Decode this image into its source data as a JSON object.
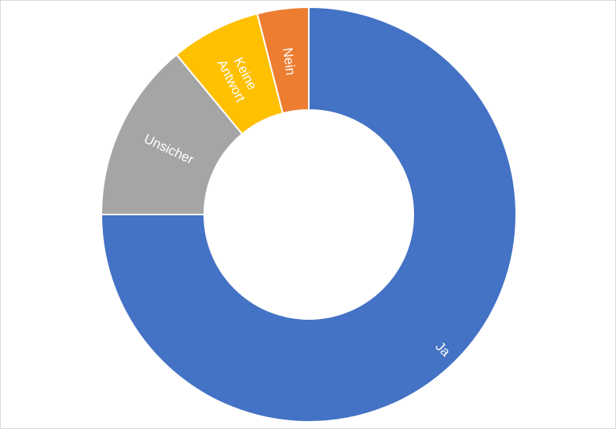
{
  "chart_data": {
    "type": "pie",
    "variant": "donut",
    "title": "",
    "slices": [
      {
        "label": "Ja",
        "value": 75,
        "color": "#4472C4"
      },
      {
        "label": "Unsicher",
        "value": 14,
        "color": "#A5A5A5"
      },
      {
        "label": "Keine Antwort",
        "label_lines": [
          "Keine",
          "Antwort"
        ],
        "value": 7,
        "color": "#FFC000"
      },
      {
        "label": "Nein",
        "value": 4,
        "color": "#ED7D31"
      }
    ],
    "start": "top",
    "direction": "clockwise",
    "legend": "none",
    "data_labels": "category names inside slices"
  }
}
